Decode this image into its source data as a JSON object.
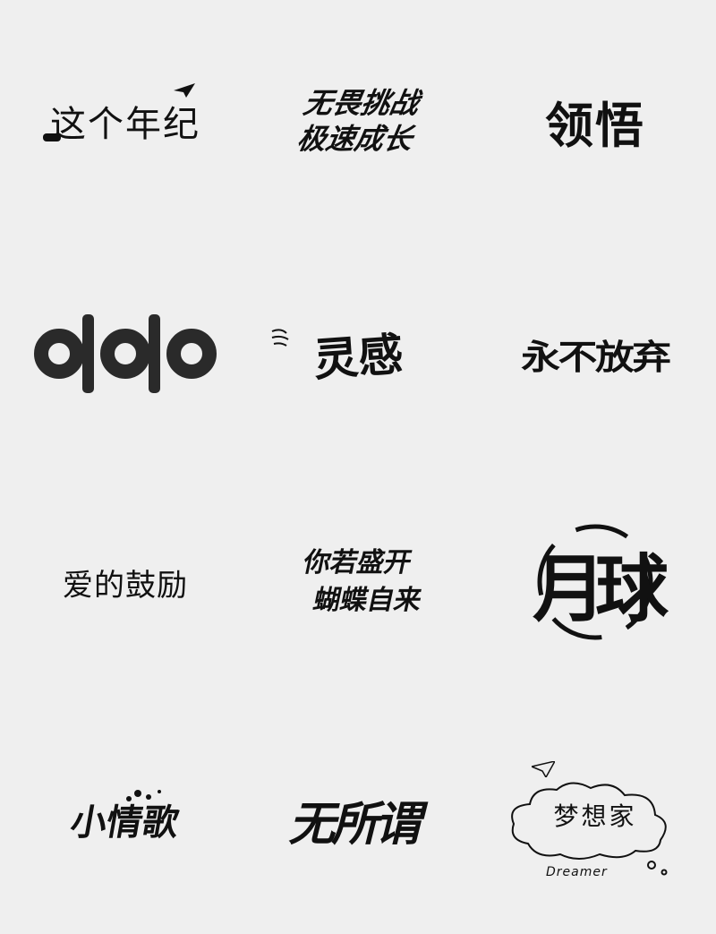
{
  "logos": [
    {
      "text": "这个年纪"
    },
    {
      "line1": "无畏挑战",
      "line2": "极速成长"
    },
    {
      "text": "领悟"
    },
    {
      "text": "이이"
    },
    {
      "text": "灵感"
    },
    {
      "text": "永不放弃"
    },
    {
      "text": "爱的鼓励"
    },
    {
      "line1": "你若盛开",
      "line2": "蝴蝶自来"
    },
    {
      "text": "月球"
    },
    {
      "text": "小情歌"
    },
    {
      "text": "无所谓"
    },
    {
      "text": "梦想家",
      "subtitle": "Dreamer"
    }
  ]
}
